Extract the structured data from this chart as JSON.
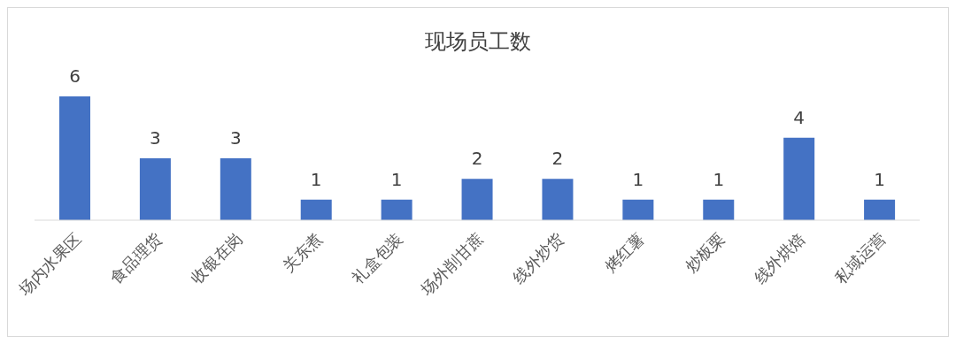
{
  "chart_data": {
    "type": "bar",
    "title": "现场员工数",
    "categories": [
      "场内水果区",
      "食品理货",
      "收银在岗",
      "关东煮",
      "礼盒包装",
      "场外削甘蔗",
      "线外炒货",
      "烤红薯",
      "炒板栗",
      "线外烘焙",
      "私域运营"
    ],
    "values": [
      6,
      3,
      3,
      1,
      1,
      2,
      2,
      1,
      1,
      4,
      1
    ],
    "color": "#4472c4",
    "data_labels": true,
    "grid": false,
    "legend": false
  }
}
